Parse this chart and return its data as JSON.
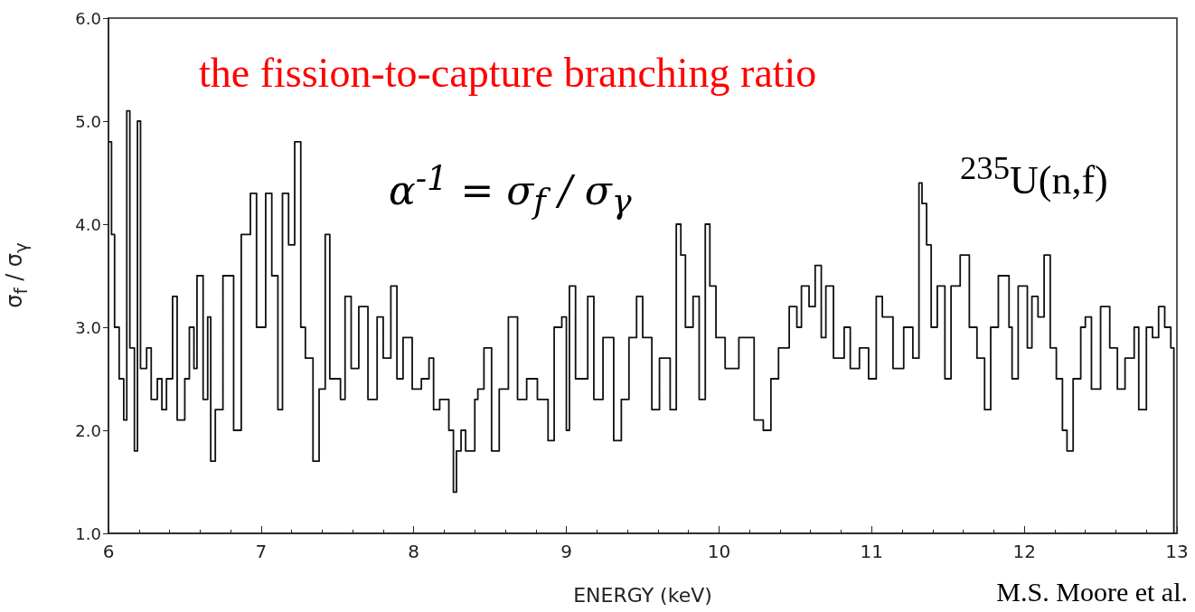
{
  "chart_data": {
    "type": "step",
    "title": "the fission-to-capture branching ratio",
    "xlabel": "ENERGY (keV)",
    "ylabel": "σ$_{f}$ / σ$_{γ}$",
    "annotations": [
      "α$^{-1}$ = σ$_{f}$ / σ$_{γ}$",
      "$^{235}$U(n,f)",
      "M.S. Moore et al."
    ],
    "xlim": [
      6,
      13
    ],
    "ylim": [
      1,
      6
    ],
    "xticks": [
      6,
      7,
      8,
      9,
      10,
      11,
      12,
      13
    ],
    "yticks": [
      {
        "value": 1,
        "label": "1.0"
      },
      {
        "value": 2,
        "label": "2.0"
      },
      {
        "value": 3,
        "label": "3.0"
      },
      {
        "value": 4,
        "label": "4.0"
      },
      {
        "value": 5,
        "label": "5.0"
      },
      {
        "value": 6,
        "label": "6.0"
      }
    ],
    "marker": "none",
    "line_style": "solid",
    "series": [
      {
        "color": "#111111",
        "x": [
          6.0,
          6.02,
          6.04,
          6.07,
          6.1,
          6.12,
          6.14,
          6.17,
          6.19,
          6.21,
          6.25,
          6.28,
          6.32,
          6.35,
          6.38,
          6.42,
          6.45,
          6.5,
          6.53,
          6.56,
          6.58,
          6.62,
          6.65,
          6.67,
          6.7,
          6.75,
          6.82,
          6.87,
          6.93,
          6.97,
          7.03,
          7.07,
          7.11,
          7.14,
          7.18,
          7.22,
          7.26,
          7.29,
          7.34,
          7.38,
          7.42,
          7.45,
          7.52,
          7.55,
          7.59,
          7.64,
          7.7,
          7.76,
          7.8,
          7.85,
          7.89,
          7.93,
          7.99,
          8.05,
          8.1,
          8.13,
          8.17,
          8.23,
          8.26,
          8.28,
          8.31,
          8.34,
          8.4,
          8.42,
          8.46,
          8.51,
          8.56,
          8.62,
          8.68,
          8.74,
          8.81,
          8.88,
          8.92,
          8.97,
          9.0,
          9.02,
          9.06,
          9.14,
          9.18,
          9.24,
          9.31,
          9.36,
          9.41,
          9.46,
          9.5,
          9.56,
          9.61,
          9.68,
          9.72,
          9.75,
          9.78,
          9.83,
          9.87,
          9.91,
          9.94,
          9.98,
          10.04,
          10.13,
          10.18,
          10.23,
          10.29,
          10.34,
          10.39,
          10.46,
          10.51,
          10.54,
          10.59,
          10.63,
          10.67,
          10.7,
          10.75,
          10.82,
          10.86,
          10.92,
          10.98,
          11.03,
          11.07,
          11.14,
          11.21,
          11.27,
          11.31,
          11.33,
          11.36,
          11.39,
          11.43,
          11.48,
          11.52,
          11.58,
          11.61,
          11.64,
          11.69,
          11.74,
          11.78,
          11.83,
          11.9,
          11.92,
          11.96,
          12.02,
          12.05,
          12.09,
          12.13,
          12.17,
          12.21,
          12.25,
          12.28,
          12.32,
          12.37,
          12.4,
          12.44,
          12.5,
          12.56,
          12.61,
          12.66,
          12.72,
          12.75,
          12.8,
          12.84,
          12.88,
          12.92,
          12.96,
          12.98
        ],
        "values": [
          4.8,
          3.9,
          3.0,
          2.5,
          2.1,
          5.1,
          2.8,
          1.8,
          5.0,
          2.6,
          2.8,
          2.3,
          2.5,
          2.2,
          2.5,
          3.3,
          2.1,
          2.5,
          3.0,
          2.6,
          3.5,
          2.3,
          3.1,
          1.7,
          2.2,
          3.5,
          2.0,
          3.9,
          4.3,
          3.0,
          4.3,
          3.5,
          2.2,
          4.3,
          3.8,
          4.8,
          3.0,
          2.7,
          1.7,
          2.4,
          3.9,
          2.5,
          2.3,
          3.3,
          2.6,
          3.2,
          2.3,
          3.1,
          2.7,
          3.4,
          2.5,
          2.9,
          2.4,
          2.5,
          2.7,
          2.2,
          2.3,
          2.0,
          1.4,
          1.8,
          2.0,
          1.8,
          2.3,
          2.4,
          2.8,
          1.8,
          2.4,
          3.1,
          2.3,
          2.5,
          2.3,
          1.9,
          3.0,
          3.1,
          2.0,
          3.4,
          2.5,
          3.3,
          2.3,
          2.9,
          1.9,
          2.3,
          2.9,
          3.3,
          2.9,
          2.2,
          2.7,
          2.2,
          4.0,
          3.7,
          3.0,
          3.3,
          2.3,
          4.0,
          3.4,
          2.9,
          2.6,
          2.9,
          2.9,
          2.1,
          2.0,
          2.5,
          2.8,
          3.2,
          3.0,
          3.4,
          3.2,
          3.6,
          2.9,
          3.4,
          2.7,
          3.0,
          2.6,
          2.8,
          2.5,
          3.3,
          3.1,
          2.6,
          3.0,
          2.7,
          4.4,
          4.2,
          3.8,
          3.0,
          3.4,
          2.5,
          3.4,
          3.7,
          3.7,
          3.0,
          2.7,
          2.2,
          3.0,
          3.5,
          3.0,
          2.5,
          3.4,
          2.8,
          3.3,
          3.1,
          3.7,
          2.8,
          2.5,
          2.0,
          1.8,
          2.5,
          3.0,
          3.1,
          2.4,
          3.2,
          2.8,
          2.4,
          2.7,
          3.0,
          2.2,
          3.0,
          2.9,
          3.2,
          3.0,
          2.8,
          1.0
        ]
      }
    ]
  }
}
